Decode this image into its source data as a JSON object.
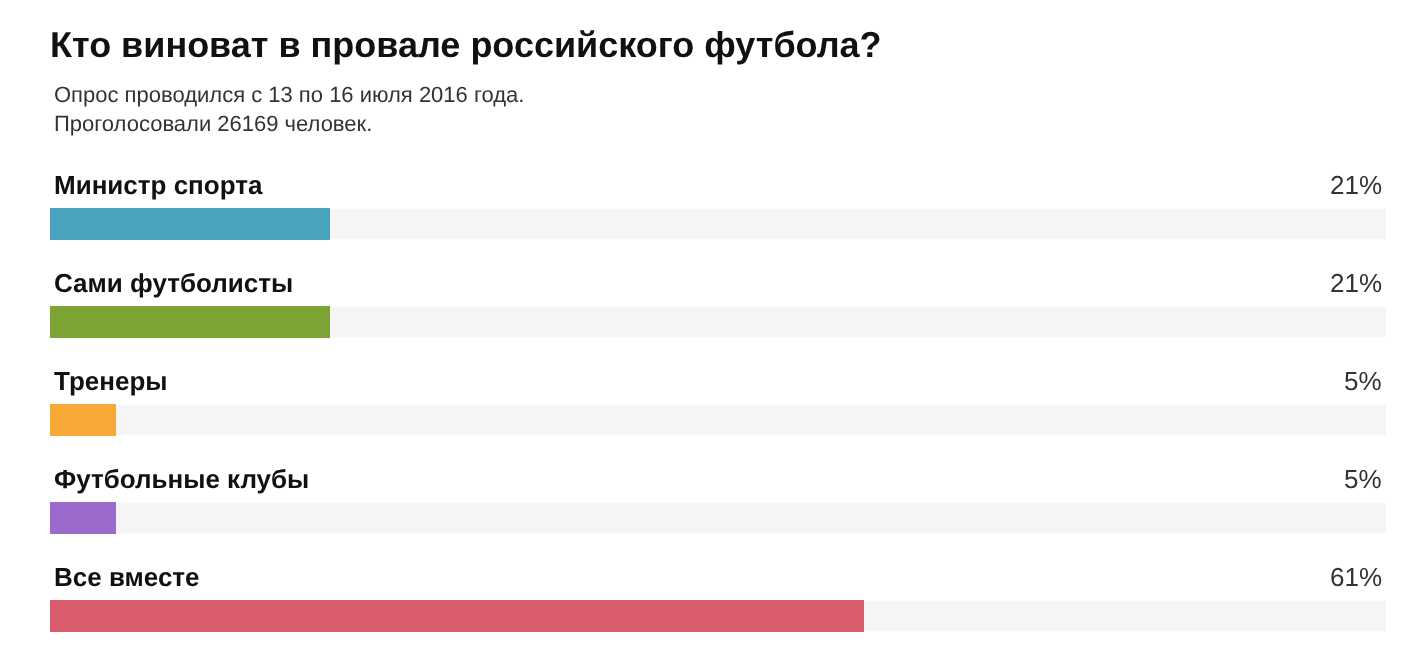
{
  "chart_data": {
    "type": "bar",
    "orientation": "horizontal",
    "title": "Кто виноват в провале российского футбола?",
    "subtitle": "Опрос проводился с 13 по 16 июля 2016 года.\nПроголосовали 26169 человек.",
    "categories": [
      "Министр спорта",
      "Сами футболисты",
      "Тренеры",
      "Футбольные клубы",
      "Все вместе"
    ],
    "values": [
      21,
      21,
      5,
      5,
      61
    ],
    "colors": [
      "#4aa3bd",
      "#7ea335",
      "#f8a834",
      "#9a6bcc",
      "#d95c6c"
    ],
    "value_labels": [
      "21%",
      "21%",
      "5%",
      "5%",
      "61%"
    ],
    "xlim": [
      0,
      100
    ],
    "tick_labels": false,
    "grid": false,
    "legend": false
  }
}
